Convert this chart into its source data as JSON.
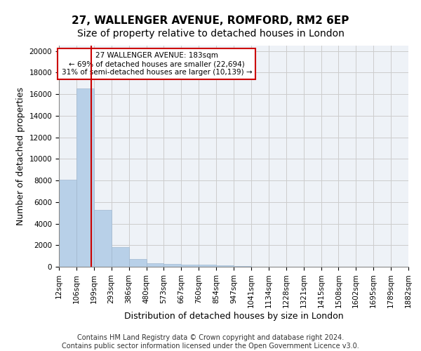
{
  "title": "27, WALLENGER AVENUE, ROMFORD, RM2 6EP",
  "subtitle": "Size of property relative to detached houses in London",
  "xlabel": "Distribution of detached houses by size in London",
  "ylabel": "Number of detached properties",
  "bin_labels": [
    "12sqm",
    "106sqm",
    "199sqm",
    "293sqm",
    "386sqm",
    "480sqm",
    "573sqm",
    "667sqm",
    "760sqm",
    "854sqm",
    "947sqm",
    "1041sqm",
    "1134sqm",
    "1228sqm",
    "1321sqm",
    "1415sqm",
    "1508sqm",
    "1602sqm",
    "1695sqm",
    "1789sqm",
    "1882sqm"
  ],
  "bar_values": [
    8100,
    16500,
    5300,
    1850,
    700,
    320,
    230,
    200,
    190,
    150,
    50,
    30,
    20,
    15,
    10,
    8,
    5,
    3,
    2,
    1
  ],
  "bar_color": "#b8d0e8",
  "bar_edge_color": "#a0b8d0",
  "bar_linewidth": 0.5,
  "grid_color": "#cccccc",
  "annotation_text": "27 WALLENGER AVENUE: 183sqm\n← 69% of detached houses are smaller (22,694)\n31% of semi-detached houses are larger (10,139) →",
  "annotation_box_color": "#ffffff",
  "annotation_box_edge_color": "#cc0000",
  "ylim": [
    0,
    20500
  ],
  "yticks": [
    0,
    2000,
    4000,
    6000,
    8000,
    10000,
    12000,
    14000,
    16000,
    18000,
    20000
  ],
  "footer_line1": "Contains HM Land Registry data © Crown copyright and database right 2024.",
  "footer_line2": "Contains public sector information licensed under the Open Government Licence v3.0.",
  "title_fontsize": 11,
  "subtitle_fontsize": 10,
  "label_fontsize": 9,
  "tick_fontsize": 7.5,
  "footer_fontsize": 7
}
